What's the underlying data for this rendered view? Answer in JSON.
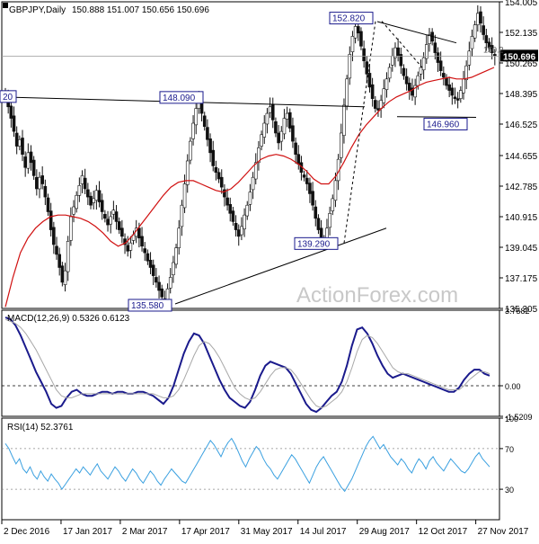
{
  "chart_data": [
    {
      "type": "candlestick",
      "title": "GBPJPY,Daily",
      "ohlc_label": "150.888 151.007 150.656 150.696",
      "ylim": [
        135.305,
        154.005
      ],
      "y_ticks": [
        "154.005",
        "152.135",
        "150.265",
        "148.395",
        "146.525",
        "144.655",
        "142.785",
        "140.915",
        "139.045",
        "137.175",
        "135.305"
      ],
      "current_price": "150.696",
      "current_price_hidden": "150.2",
      "x_ticks": [
        "2 Dec 2016",
        "17 Jan 2017",
        "2 Mar 2017",
        "17 Apr 2017",
        "31 May 2017",
        "14 Jul 2017",
        "29 Aug 2017",
        "12 Oct 2017",
        "27 Nov 2017"
      ],
      "annotations": [
        {
          "label": "152.820",
          "value": 152.82
        },
        {
          "label": "148.090",
          "value": 148.09
        },
        {
          "label": "146.960",
          "value": 146.96
        },
        {
          "label": "139.290",
          "value": 139.29
        },
        {
          "label": "135.580",
          "value": 135.58
        },
        {
          "label": "20",
          "value": 148.2
        }
      ],
      "series": [
        {
          "name": "Close",
          "color": "#1a3fd6",
          "values": [
            148.2,
            147.6,
            146.9,
            146.1,
            145.2,
            145.6,
            144.7,
            143.9,
            144.8,
            144.2,
            143.4,
            142.6,
            143.3,
            142.9,
            142.1,
            141.2,
            140.1,
            139.2,
            138.6,
            137.8,
            136.9,
            137.6,
            139.4,
            140.9,
            141.5,
            142.2,
            142.8,
            143.4,
            142.6,
            142.1,
            141.6,
            142.0,
            142.5,
            141.8,
            141.2,
            140.8,
            140.4,
            140.9,
            141.3,
            140.6,
            140.1,
            139.7,
            139.2,
            138.8,
            139.3,
            139.8,
            140.2,
            139.6,
            139.1,
            138.7,
            138.2,
            137.8,
            137.3,
            136.9,
            136.4,
            136.0,
            135.9,
            136.5,
            137.2,
            138.1,
            139.0,
            140.2,
            141.6,
            142.9,
            144.3,
            145.5,
            146.6,
            147.5,
            148.0,
            147.2,
            146.4,
            145.6,
            144.8,
            144.0,
            143.6,
            143.2,
            142.7,
            142.1,
            141.6,
            141.1,
            140.6,
            140.1,
            139.7,
            140.3,
            141.0,
            141.6,
            142.4,
            143.3,
            144.2,
            145.1,
            145.9,
            146.6,
            147.2,
            147.6,
            146.8,
            146.0,
            145.4,
            146.1,
            146.9,
            147.2,
            146.3,
            145.5,
            144.7,
            144.1,
            143.6,
            143.3,
            142.9,
            142.3,
            141.6,
            140.8,
            140.1,
            139.6,
            139.4,
            140.2,
            141.1,
            142.0,
            143.1,
            144.4,
            146.0,
            147.7,
            149.3,
            150.8,
            151.9,
            152.5,
            152.1,
            151.3,
            150.4,
            149.6,
            148.8,
            148.1,
            147.5,
            147.4,
            148.0,
            148.7,
            149.3,
            150.0,
            150.7,
            151.2,
            150.7,
            150.1,
            149.5,
            149.0,
            148.6,
            148.3,
            148.9,
            149.5,
            150.0,
            150.6,
            151.4,
            152.0,
            151.6,
            150.9,
            150.3,
            149.8,
            149.4,
            148.9,
            148.6,
            148.3,
            148.1,
            148.0,
            148.6,
            149.3,
            150.1,
            151.0,
            151.9,
            152.6,
            153.3,
            152.7,
            152.0,
            151.5,
            151.2,
            150.9,
            150.7
          ]
        },
        {
          "name": "SMA",
          "color": "#d01010",
          "values": [
            135.4,
            137.2,
            138.7,
            139.6,
            140.2,
            140.6,
            140.9,
            141.0,
            141.0,
            140.9,
            140.8,
            140.6,
            140.3,
            139.9,
            139.4,
            139.1,
            139.3,
            139.8,
            140.4,
            141.0,
            141.6,
            142.2,
            142.7,
            143.0,
            143.1,
            143.1,
            142.9,
            142.7,
            142.5,
            142.4,
            142.6,
            143.0,
            143.5,
            144.0,
            144.4,
            144.6,
            144.7,
            144.6,
            144.4,
            144.1,
            143.7,
            143.2,
            142.9,
            142.9,
            143.4,
            144.2,
            145.1,
            145.9,
            146.5,
            147.0,
            147.5,
            147.9,
            148.2,
            148.4,
            148.6,
            148.9,
            149.1,
            149.2,
            149.3,
            149.4,
            149.3,
            149.3,
            149.4,
            149.6,
            149.8,
            150.0
          ]
        }
      ]
    },
    {
      "type": "line",
      "title": "MACD(12,26,9) 0.5326 0.6123",
      "ylim": [
        -1.5209,
        3.7582
      ],
      "y_ticks": [
        "3.7582",
        "0.00",
        "-1.5209"
      ],
      "series": [
        {
          "name": "MACD",
          "color": "#1a1a8c",
          "values": [
            3.4,
            3.3,
            3.0,
            2.5,
            1.9,
            1.3,
            0.7,
            0.2,
            -0.3,
            -0.9,
            -1.1,
            -1.0,
            -0.6,
            -0.3,
            -0.2,
            -0.4,
            -0.5,
            -0.5,
            -0.4,
            -0.3,
            -0.3,
            -0.4,
            -0.3,
            -0.3,
            -0.4,
            -0.4,
            -0.3,
            -0.3,
            -0.4,
            -0.5,
            -0.7,
            -0.9,
            -0.6,
            0.0,
            0.8,
            1.6,
            2.2,
            2.6,
            2.5,
            2.1,
            1.5,
            0.9,
            0.3,
            -0.2,
            -0.6,
            -0.8,
            -1.0,
            -1.1,
            -0.8,
            -0.2,
            0.5,
            1.0,
            1.2,
            1.1,
            1.0,
            0.9,
            0.6,
            0.1,
            -0.4,
            -0.9,
            -1.2,
            -1.3,
            -1.1,
            -0.8,
            -0.5,
            -0.3,
            0.2,
            1.0,
            2.0,
            2.8,
            2.9,
            2.6,
            2.1,
            1.5,
            1.0,
            0.6,
            0.4,
            0.5,
            0.6,
            0.5,
            0.4,
            0.3,
            0.2,
            0.1,
            0.0,
            -0.1,
            -0.2,
            -0.3,
            -0.3,
            -0.1,
            0.3,
            0.6,
            0.8,
            0.8,
            0.6,
            0.5
          ]
        },
        {
          "name": "Signal",
          "color": "#a8a8a8",
          "values": [
            3.3,
            3.2,
            3.1,
            2.9,
            2.6,
            2.2,
            1.8,
            1.3,
            0.8,
            0.3,
            -0.2,
            -0.5,
            -0.6,
            -0.6,
            -0.5,
            -0.4,
            -0.4,
            -0.4,
            -0.4,
            -0.4,
            -0.4,
            -0.4,
            -0.4,
            -0.4,
            -0.4,
            -0.4,
            -0.4,
            -0.4,
            -0.4,
            -0.4,
            -0.5,
            -0.6,
            -0.6,
            -0.5,
            -0.2,
            0.3,
            0.9,
            1.5,
            2.0,
            2.2,
            2.1,
            1.8,
            1.4,
            0.9,
            0.4,
            -0.1,
            -0.4,
            -0.6,
            -0.7,
            -0.6,
            -0.3,
            0.1,
            0.5,
            0.8,
            0.9,
            0.9,
            0.8,
            0.5,
            0.1,
            -0.3,
            -0.7,
            -1.0,
            -1.1,
            -1.0,
            -0.8,
            -0.6,
            -0.3,
            0.2,
            0.9,
            1.7,
            2.3,
            2.5,
            2.4,
            2.1,
            1.7,
            1.3,
            0.9,
            0.7,
            0.6,
            0.6,
            0.5,
            0.4,
            0.3,
            0.2,
            0.1,
            0.0,
            -0.1,
            -0.2,
            -0.2,
            -0.2,
            0.0,
            0.3,
            0.5,
            0.7,
            0.7,
            0.6
          ]
        }
      ]
    },
    {
      "type": "line",
      "title": "RSI(14) 52.3761",
      "ylim": [
        0,
        100
      ],
      "y_ticks": [
        "100",
        "70",
        "30",
        "0"
      ],
      "levels": [
        70,
        30
      ],
      "series": [
        {
          "name": "RSI",
          "color": "#3aa0e0",
          "values": [
            75,
            70,
            62,
            55,
            60,
            50,
            46,
            52,
            44,
            40,
            48,
            42,
            38,
            45,
            40,
            36,
            30,
            35,
            40,
            45,
            50,
            46,
            52,
            48,
            44,
            50,
            55,
            48,
            44,
            40,
            46,
            52,
            48,
            42,
            38,
            44,
            50,
            46,
            40,
            36,
            42,
            48,
            44,
            38,
            34,
            40,
            45,
            50,
            46,
            42,
            38,
            36,
            42,
            48,
            54,
            60,
            66,
            72,
            78,
            74,
            68,
            62,
            70,
            76,
            80,
            74,
            66,
            58,
            52,
            60,
            66,
            72,
            68,
            60,
            54,
            50,
            44,
            40,
            46,
            52,
            58,
            64,
            60,
            54,
            48,
            42,
            36,
            44,
            52,
            58,
            62,
            56,
            50,
            44,
            38,
            32,
            28,
            34,
            40,
            48,
            56,
            64,
            72,
            78,
            82,
            76,
            70,
            74,
            68,
            62,
            58,
            54,
            60,
            56,
            50,
            46,
            54,
            60,
            56,
            50,
            58,
            62,
            56,
            52,
            48,
            54,
            60,
            56,
            52,
            48,
            46,
            50,
            56,
            62,
            66,
            60,
            56,
            52
          ]
        }
      ]
    }
  ],
  "watermark": "ActionForex.com"
}
